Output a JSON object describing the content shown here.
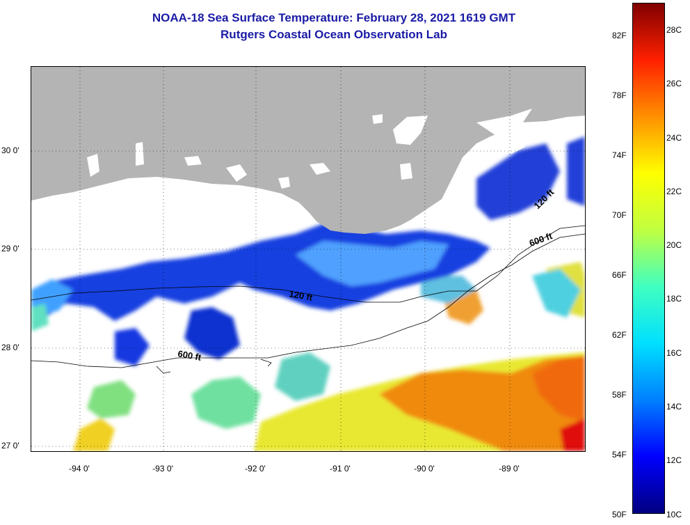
{
  "title": {
    "line1": "NOAA-18 Sea Surface Temperature:  February 28, 2021 1619 GMT",
    "line2": "Rutgers Coastal Ocean Observation Lab"
  },
  "map": {
    "lat_labels": [
      "30 0'",
      "29 0'",
      "28 0'",
      "27 0'"
    ],
    "lon_labels": [
      "-94 0'",
      "-93 0'",
      "-92 0'",
      "-91 0'",
      "-90 0'",
      "-89 0'"
    ],
    "contour_labels": [
      "120 ft",
      "600 ft",
      "120 ft",
      "600 ft"
    ],
    "colors": {
      "land": "#b4b4b4",
      "cloud": "#ffffff",
      "cold": "#1030e0",
      "cool": "#3aa0ff",
      "mid": "#40e0d0",
      "warm": "#f0e020",
      "hot": "#f07010",
      "hottest": "#e81010"
    }
  },
  "colorbar": {
    "fahrenheit_labels": [
      "82F",
      "78F",
      "74F",
      "70F",
      "66F",
      "62F",
      "58F",
      "54F",
      "50F"
    ],
    "celsius_labels": [
      "28C",
      "26C",
      "24C",
      "22C",
      "20C",
      "18C",
      "16C",
      "14C",
      "12C",
      "10C"
    ],
    "gradient": [
      "#000080",
      "#0000ff",
      "#0080ff",
      "#00e0ff",
      "#40ffc0",
      "#c0ff40",
      "#ffff00",
      "#ff9000",
      "#ff2000",
      "#800000"
    ]
  }
}
